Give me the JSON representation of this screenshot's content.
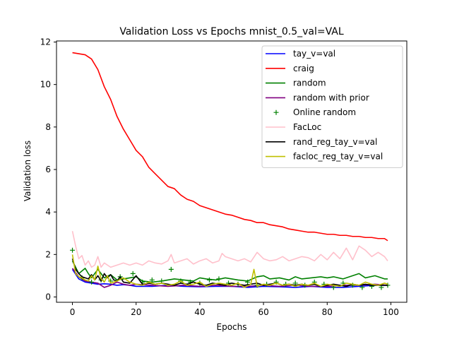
{
  "chart_data": {
    "type": "line",
    "title": "Validation Loss vs Epochs mnist_0.5_val=VAL",
    "xlabel": "Epochs",
    "ylabel": "Validation loss",
    "xlim": [
      -5,
      105
    ],
    "ylim": [
      -0.25,
      12.05
    ],
    "xticks": [
      0,
      20,
      40,
      60,
      80,
      100
    ],
    "yticks": [
      0,
      2,
      4,
      6,
      8,
      10,
      12
    ],
    "grid": false,
    "legend_position": "upper right",
    "series": [
      {
        "name": "tay_v=val",
        "color": "#0000ff",
        "style": "line",
        "x": [
          0,
          2,
          4,
          6,
          8,
          10,
          12,
          14,
          16,
          18,
          20,
          25,
          30,
          35,
          40,
          45,
          50,
          55,
          60,
          65,
          70,
          75,
          80,
          85,
          90,
          95,
          99
        ],
        "y": [
          1.3,
          0.85,
          0.7,
          0.65,
          0.6,
          0.62,
          0.6,
          0.55,
          0.58,
          0.55,
          0.5,
          0.5,
          0.55,
          0.5,
          0.48,
          0.5,
          0.5,
          0.45,
          0.5,
          0.48,
          0.45,
          0.5,
          0.45,
          0.45,
          0.5,
          0.55,
          0.55
        ]
      },
      {
        "name": "craig",
        "color": "#ff0000",
        "style": "line",
        "x": [
          0,
          2,
          4,
          6,
          8,
          10,
          12,
          14,
          16,
          18,
          20,
          22,
          24,
          26,
          28,
          30,
          32,
          34,
          36,
          38,
          40,
          42,
          44,
          46,
          48,
          50,
          52,
          54,
          56,
          58,
          60,
          62,
          64,
          66,
          68,
          70,
          72,
          74,
          76,
          78,
          80,
          82,
          84,
          86,
          88,
          90,
          92,
          94,
          96,
          98,
          99
        ],
        "y": [
          11.5,
          11.45,
          11.4,
          11.2,
          10.7,
          9.9,
          9.3,
          8.5,
          7.9,
          7.4,
          6.9,
          6.6,
          6.1,
          5.8,
          5.5,
          5.2,
          5.1,
          4.8,
          4.6,
          4.5,
          4.3,
          4.2,
          4.1,
          4.0,
          3.9,
          3.85,
          3.75,
          3.65,
          3.6,
          3.5,
          3.5,
          3.4,
          3.35,
          3.3,
          3.2,
          3.15,
          3.1,
          3.05,
          3.05,
          3.0,
          2.95,
          2.95,
          2.9,
          2.9,
          2.85,
          2.85,
          2.8,
          2.8,
          2.75,
          2.75,
          2.65
        ]
      },
      {
        "name": "random",
        "color": "#008000",
        "style": "line",
        "x": [
          0,
          2,
          4,
          5,
          6,
          8,
          10,
          12,
          14,
          16,
          18,
          20,
          22,
          25,
          28,
          30,
          32,
          35,
          38,
          40,
          42,
          45,
          48,
          50,
          52,
          55,
          58,
          60,
          62,
          65,
          68,
          70,
          72,
          75,
          78,
          80,
          82,
          85,
          88,
          90,
          92,
          95,
          98,
          99
        ],
        "y": [
          1.7,
          1.1,
          1.35,
          1.1,
          0.9,
          1.3,
          0.9,
          1.05,
          0.8,
          0.85,
          0.9,
          0.95,
          0.75,
          0.7,
          0.75,
          0.8,
          0.85,
          0.8,
          0.75,
          0.9,
          0.85,
          0.8,
          0.9,
          0.85,
          0.8,
          0.75,
          0.95,
          1.0,
          0.85,
          0.9,
          0.8,
          0.95,
          0.85,
          0.9,
          0.95,
          0.9,
          0.95,
          0.85,
          1.0,
          1.1,
          0.9,
          1.0,
          0.85,
          0.85
        ]
      },
      {
        "name": "random with prior",
        "color": "#800080",
        "style": "line",
        "x": [
          0,
          2,
          4,
          6,
          8,
          10,
          12,
          14,
          16,
          18,
          20,
          25,
          30,
          35,
          40,
          45,
          50,
          55,
          60,
          65,
          70,
          75,
          80,
          85,
          90,
          95,
          99
        ],
        "y": [
          1.35,
          0.95,
          0.75,
          0.7,
          0.65,
          0.45,
          0.55,
          0.7,
          0.6,
          0.55,
          0.6,
          0.55,
          0.5,
          0.55,
          0.5,
          0.55,
          0.5,
          0.5,
          0.55,
          0.5,
          0.55,
          0.5,
          0.5,
          0.55,
          0.55,
          0.6,
          0.55
        ]
      },
      {
        "name": "Online random",
        "color": "#008000",
        "style": "marker",
        "x": [
          0,
          3,
          6,
          9,
          12,
          15,
          19,
          22,
          25,
          28,
          31,
          34,
          37,
          40,
          43,
          46,
          49,
          52,
          55,
          58,
          61,
          64,
          67,
          70,
          73,
          76,
          79,
          82,
          85,
          88,
          91,
          94,
          97,
          99
        ],
        "y": [
          2.2,
          0.9,
          0.7,
          0.8,
          0.75,
          0.95,
          1.1,
          0.7,
          0.8,
          0.75,
          1.3,
          0.75,
          0.7,
          0.65,
          0.8,
          0.85,
          0.65,
          0.6,
          0.7,
          0.55,
          0.6,
          0.7,
          0.6,
          0.65,
          0.55,
          0.7,
          0.6,
          0.45,
          0.65,
          0.55,
          0.45,
          0.5,
          0.45,
          0.55
        ]
      },
      {
        "name": "FacLoc",
        "color": "#ffc0cb",
        "style": "line",
        "x": [
          0,
          1,
          2,
          3,
          4,
          5,
          6,
          7,
          8,
          9,
          10,
          12,
          14,
          16,
          18,
          20,
          22,
          24,
          26,
          28,
          30,
          31,
          32,
          34,
          36,
          38,
          40,
          42,
          44,
          46,
          47,
          48,
          50,
          52,
          54,
          56,
          58,
          60,
          62,
          64,
          66,
          68,
          70,
          72,
          74,
          76,
          78,
          80,
          82,
          84,
          86,
          88,
          90,
          92,
          94,
          96,
          98,
          99
        ],
        "y": [
          3.1,
          2.4,
          1.8,
          1.95,
          1.5,
          1.7,
          1.4,
          1.5,
          1.9,
          1.4,
          1.6,
          1.4,
          1.5,
          1.6,
          1.5,
          1.6,
          1.5,
          1.7,
          1.6,
          1.55,
          1.7,
          2.0,
          1.6,
          1.7,
          1.8,
          1.55,
          1.7,
          1.8,
          1.6,
          1.7,
          2.05,
          1.9,
          1.8,
          1.7,
          1.8,
          1.65,
          2.1,
          1.8,
          1.7,
          1.75,
          1.9,
          1.7,
          1.8,
          1.9,
          1.85,
          1.7,
          2.0,
          1.75,
          2.1,
          1.8,
          2.3,
          1.75,
          2.4,
          2.2,
          1.9,
          2.1,
          1.9,
          1.7
        ]
      },
      {
        "name": "rand_reg_tay_v=val",
        "color": "#000000",
        "style": "line",
        "x": [
          0,
          1,
          2,
          3,
          4,
          5,
          6,
          7,
          8,
          9,
          10,
          11,
          12,
          13,
          14,
          15,
          16,
          18,
          20,
          22,
          24,
          26,
          28,
          30,
          32,
          34,
          36,
          38,
          40,
          42,
          44,
          46,
          48,
          50,
          52,
          54,
          56,
          58,
          60,
          62,
          64,
          66,
          68,
          70,
          72,
          74,
          76,
          78,
          80,
          82,
          84,
          86,
          88,
          90,
          92,
          94,
          96,
          98,
          99
        ],
        "y": [
          1.8,
          1.3,
          1.1,
          0.95,
          0.9,
          0.85,
          1.05,
          0.8,
          1.0,
          0.75,
          1.1,
          0.9,
          1.05,
          0.8,
          0.75,
          0.95,
          0.7,
          0.65,
          1.0,
          0.6,
          0.65,
          0.6,
          0.65,
          0.6,
          0.55,
          0.65,
          0.6,
          0.7,
          0.6,
          0.55,
          0.65,
          0.6,
          0.55,
          0.65,
          0.6,
          0.55,
          0.6,
          0.65,
          0.55,
          0.6,
          0.65,
          0.55,
          0.6,
          0.55,
          0.6,
          0.55,
          0.6,
          0.5,
          0.55,
          0.6,
          0.55,
          0.5,
          0.6,
          0.55,
          0.6,
          0.55,
          0.55,
          0.55,
          0.55
        ]
      },
      {
        "name": "facloc_reg_tay_v=val",
        "color": "#bfbf00",
        "style": "line",
        "x": [
          0,
          1,
          2,
          3,
          4,
          5,
          6,
          7,
          8,
          9,
          10,
          11,
          12,
          14,
          16,
          18,
          20,
          22,
          24,
          26,
          28,
          30,
          32,
          34,
          36,
          38,
          40,
          42,
          44,
          46,
          48,
          50,
          52,
          54,
          56,
          57,
          58,
          60,
          62,
          64,
          66,
          68,
          70,
          72,
          74,
          76,
          78,
          80,
          82,
          84,
          86,
          88,
          90,
          92,
          94,
          96,
          98,
          99
        ],
        "y": [
          2.0,
          1.1,
          0.95,
          0.9,
          0.8,
          0.75,
          1.0,
          0.8,
          1.45,
          0.85,
          0.7,
          1.0,
          0.65,
          0.75,
          0.9,
          0.7,
          0.6,
          0.55,
          0.7,
          0.6,
          0.65,
          0.55,
          0.6,
          0.75,
          0.55,
          0.6,
          0.7,
          0.5,
          0.6,
          0.65,
          0.6,
          0.55,
          0.65,
          0.45,
          0.6,
          1.3,
          0.5,
          0.6,
          0.55,
          0.65,
          0.55,
          0.6,
          0.5,
          0.6,
          0.55,
          0.65,
          0.5,
          0.6,
          0.55,
          0.5,
          0.65,
          0.6,
          0.55,
          0.7,
          0.6,
          0.55,
          0.65,
          0.6
        ]
      }
    ]
  }
}
